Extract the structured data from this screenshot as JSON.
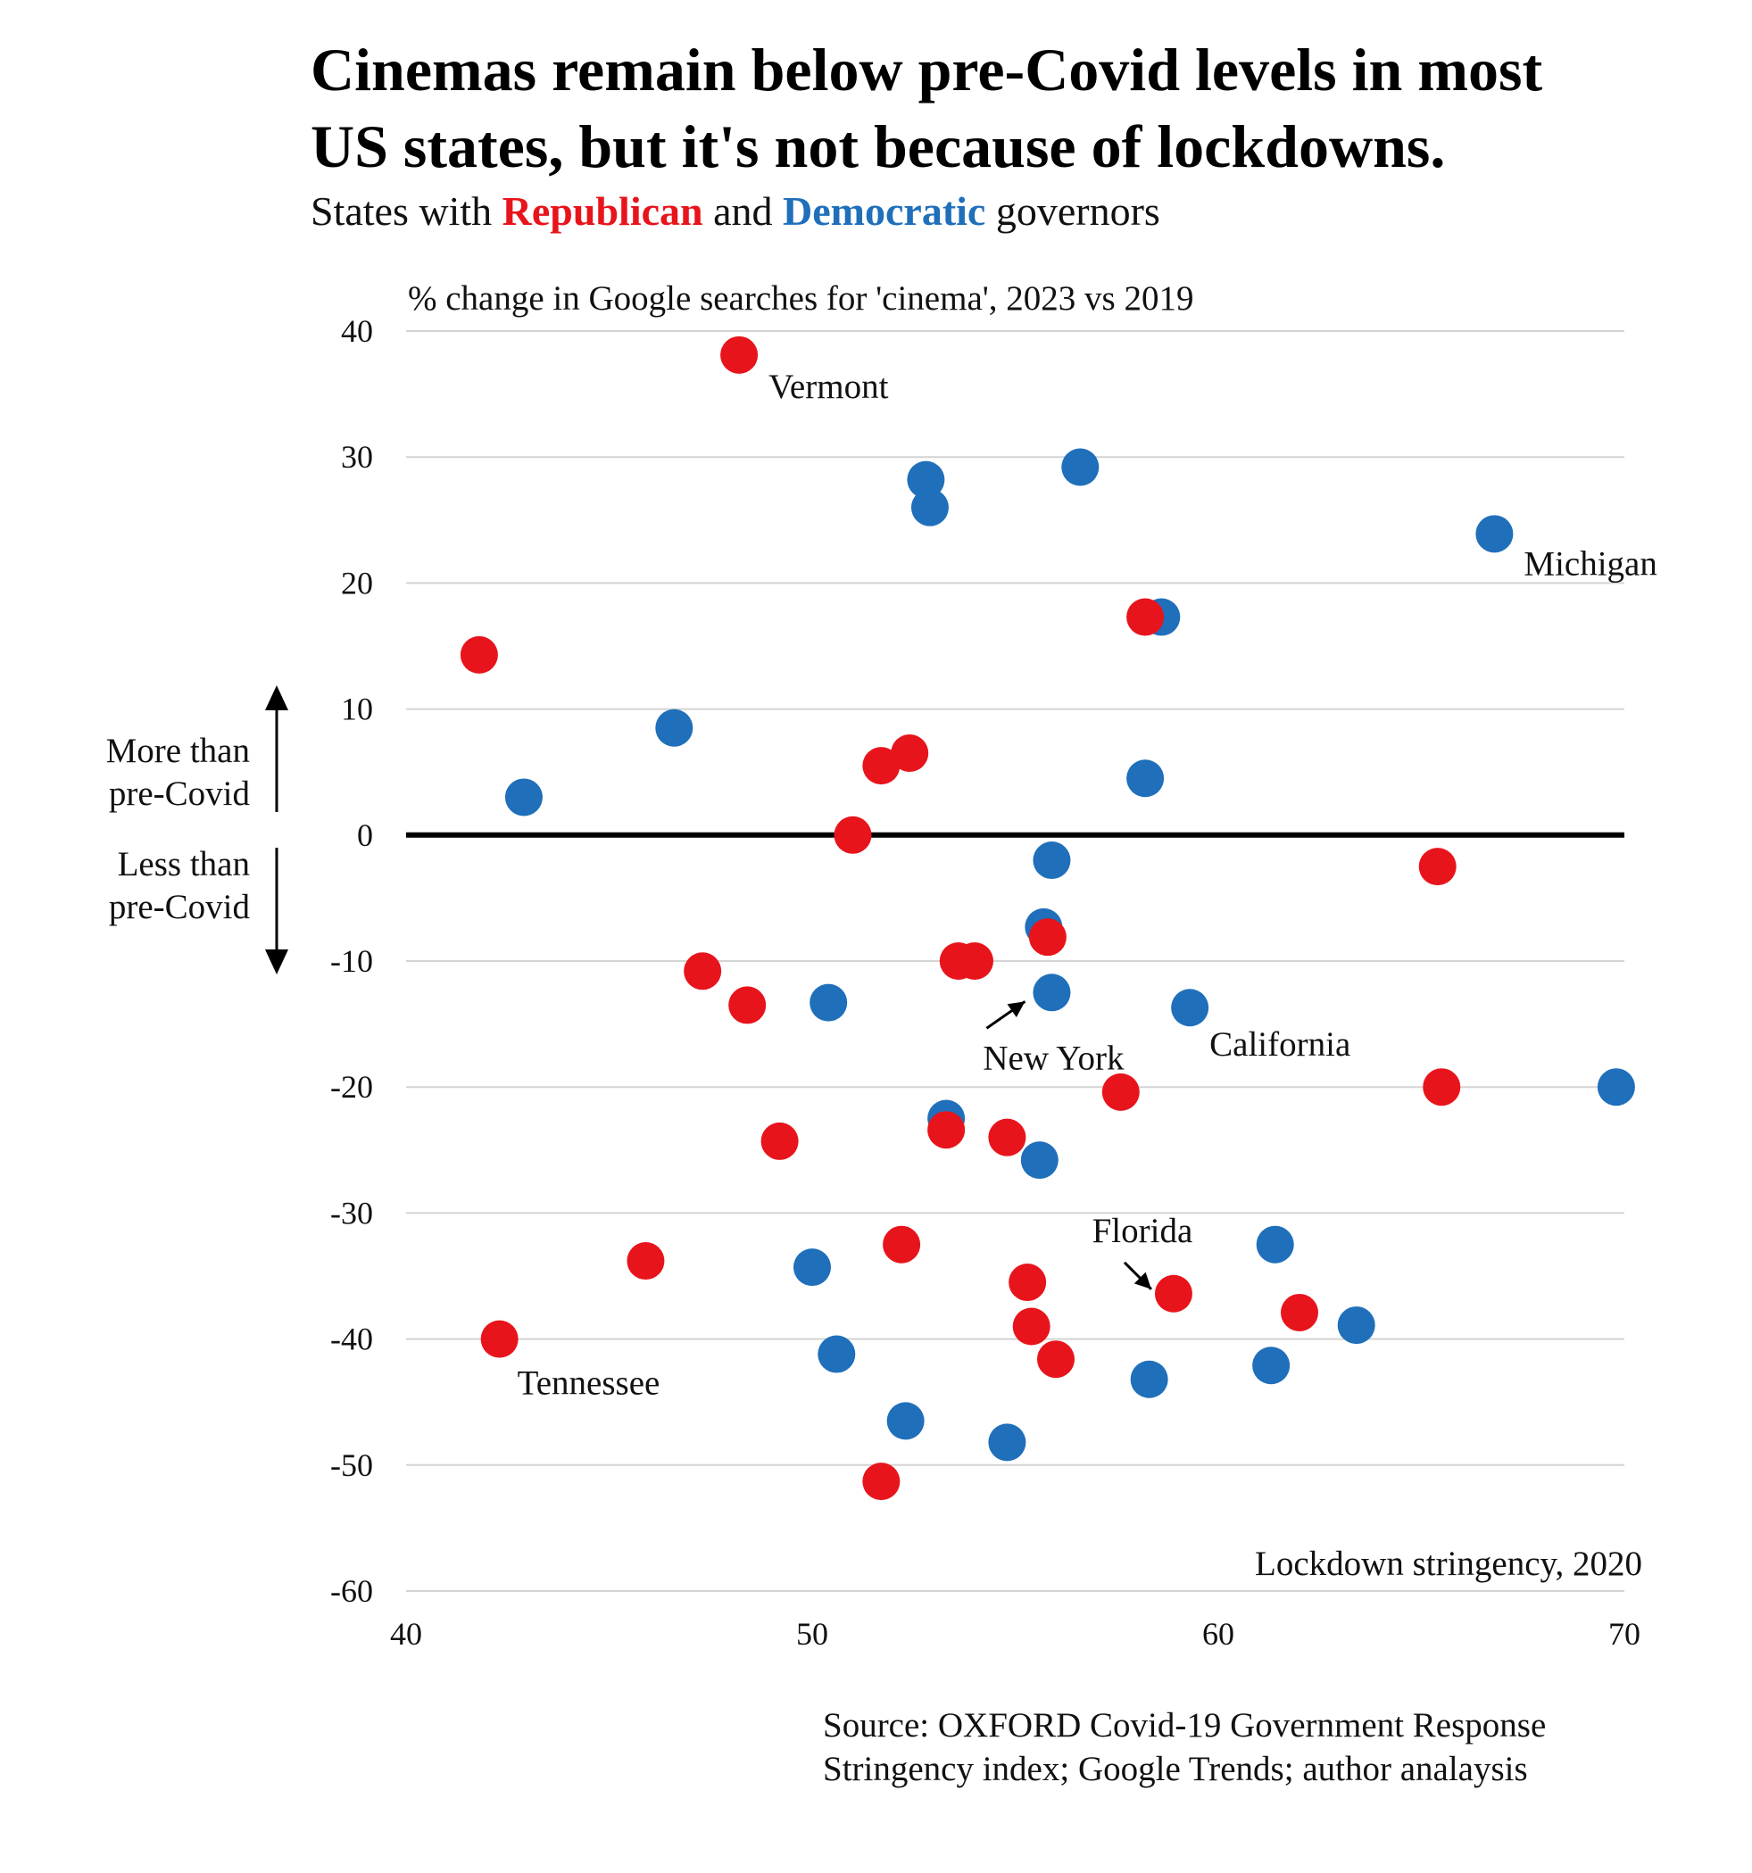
{
  "title": "Cinemas remain below pre-Covid levels in most US states, but it's not because of lockdowns.",
  "title_lines": [
    "Cinemas remain below pre-Covid levels in most",
    "US states, but it's not because of lockdowns."
  ],
  "subtitle": {
    "prefix": "States with ",
    "rep_word": "Republican",
    "middle": " and ",
    "dem_word": "Democratic",
    "suffix": " governors"
  },
  "colors": {
    "republican": "#e8141c",
    "democratic": "#1f6fba",
    "grid": "#d4d4d4",
    "zero_line": "#000000"
  },
  "notes": {
    "more": [
      "More than",
      "pre-Covid"
    ],
    "less": [
      "Less than",
      "pre-Covid"
    ]
  },
  "source": [
    "Source: OXFORD Covid-19 Government Response",
    "Stringency index; Google Trends; author analaysis"
  ],
  "chart_data": {
    "type": "scatter",
    "ylabel": "% change in Google searches for 'cinema', 2023 vs 2019",
    "xlabel": "Lockdown stringency, 2020",
    "xlim": [
      40,
      70
    ],
    "ylim": [
      -60,
      40
    ],
    "xticks": [
      40,
      50,
      60,
      70
    ],
    "yticks": [
      40,
      30,
      20,
      10,
      0,
      -10,
      -20,
      -30,
      -40,
      -50,
      -60
    ],
    "grid": "horizontal",
    "series": [
      {
        "name": "Democratic",
        "color": "#1f6fba",
        "points": [
          [
            52.8,
            28.2
          ],
          [
            52.9,
            26.0
          ],
          [
            56.6,
            29.2
          ],
          [
            66.8,
            23.9
          ],
          [
            58.6,
            17.3
          ],
          [
            46.6,
            8.5
          ],
          [
            42.9,
            3.0
          ],
          [
            58.2,
            4.5
          ],
          [
            55.9,
            -2.0
          ],
          [
            55.7,
            -7.3
          ],
          [
            55.9,
            -12.5
          ],
          [
            50.4,
            -13.3
          ],
          [
            59.3,
            -13.7
          ],
          [
            69.8,
            -20.0
          ],
          [
            53.3,
            -22.5
          ],
          [
            55.6,
            -25.8
          ],
          [
            50.0,
            -34.3
          ],
          [
            61.4,
            -32.5
          ],
          [
            63.4,
            -38.9
          ],
          [
            50.6,
            -41.2
          ],
          [
            58.3,
            -43.2
          ],
          [
            61.3,
            -42.1
          ],
          [
            52.3,
            -46.5
          ],
          [
            54.8,
            -48.2
          ]
        ]
      },
      {
        "name": "Republican",
        "color": "#e8141c",
        "points": [
          [
            48.2,
            38.1
          ],
          [
            58.2,
            17.3
          ],
          [
            41.8,
            14.3
          ],
          [
            52.4,
            6.5
          ],
          [
            51.7,
            5.5
          ],
          [
            51.0,
            0.0
          ],
          [
            65.4,
            -2.5
          ],
          [
            55.8,
            -8.1
          ],
          [
            53.6,
            -10.0
          ],
          [
            54.0,
            -10.0
          ],
          [
            47.3,
            -10.8
          ],
          [
            48.4,
            -13.5
          ],
          [
            57.6,
            -20.4
          ],
          [
            65.5,
            -20.0
          ],
          [
            53.3,
            -23.4
          ],
          [
            54.8,
            -24.0
          ],
          [
            49.2,
            -24.3
          ],
          [
            45.9,
            -33.8
          ],
          [
            52.2,
            -32.5
          ],
          [
            55.3,
            -35.5
          ],
          [
            58.9,
            -36.4
          ],
          [
            62.0,
            -37.9
          ],
          [
            55.4,
            -39.0
          ],
          [
            56.0,
            -41.6
          ],
          [
            42.3,
            -40.0
          ],
          [
            51.7,
            -51.3
          ]
        ]
      }
    ],
    "annotations": [
      {
        "label": "Vermont",
        "x": 48.2,
        "y": 38.1
      },
      {
        "label": "Michigan",
        "x": 66.8,
        "y": 23.9
      },
      {
        "label": "New York",
        "x": 55.9,
        "y": -12.5
      },
      {
        "label": "California",
        "x": 59.3,
        "y": -13.7
      },
      {
        "label": "Florida",
        "x": 58.9,
        "y": -36.4
      },
      {
        "label": "Tennessee",
        "x": 42.3,
        "y": -40.0
      }
    ]
  }
}
